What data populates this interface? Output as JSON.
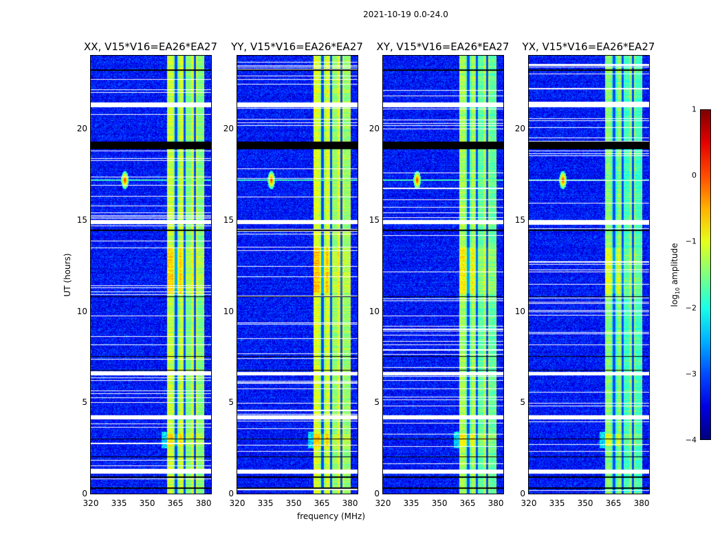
{
  "chart_data": {
    "type": "heatmap",
    "suptitle": "2021-10-19 0.0-24.0",
    "xlabel": "frequency (MHz)",
    "ylabel": "UT (hours)",
    "xlim": [
      320,
      384
    ],
    "ylim": [
      0,
      24
    ],
    "xticks": [
      "320",
      "335",
      "350",
      "365",
      "380"
    ],
    "xtick_values": [
      320,
      335,
      350,
      365,
      380
    ],
    "yticks": [
      "0",
      "5",
      "10",
      "15",
      "20"
    ],
    "ytick_values": [
      0,
      5,
      10,
      15,
      20
    ],
    "panels": [
      {
        "title": "XX, V15*V16=EA26*EA27",
        "band_level": -1.15,
        "background_level": -3.3
      },
      {
        "title": "YY, V15*V16=EA26*EA27",
        "band_level": -1.05,
        "background_level": -3.3
      },
      {
        "title": "XY, V15*V16=EA26*EA27",
        "band_level": -1.3,
        "background_level": -3.3
      },
      {
        "title": "YX, V15*V16=EA26*EA27",
        "band_level": -1.45,
        "background_level": -3.3
      }
    ],
    "band_mhz": [
      360.5,
      380
    ],
    "rfi": {
      "freq_mhz": 338,
      "hour": 17.2
    },
    "flagged_white_hours": [
      [
        1.1,
        1.35
      ],
      [
        4.1,
        4.3
      ],
      [
        6.5,
        6.7
      ],
      [
        14.8,
        15.0
      ],
      [
        21.2,
        21.45
      ]
    ],
    "flagged_black_hours": [
      [
        0.3,
        0.35
      ],
      [
        0.9,
        0.95
      ],
      [
        2.0,
        2.05
      ],
      [
        3.0,
        3.05
      ],
      [
        6.75,
        6.8
      ],
      [
        7.5,
        7.55
      ],
      [
        10.8,
        10.85
      ],
      [
        14.4,
        14.5
      ],
      [
        18.9,
        19.3
      ],
      [
        23.2,
        23.25
      ]
    ],
    "colorbar": {
      "label": "log10 amplitude",
      "label_main": "log",
      "label_sub": "10",
      "label_rest": " amplitude",
      "range": [
        -4,
        1
      ],
      "ticks": [
        "1",
        "0",
        "−1",
        "−2",
        "−3",
        "−4"
      ],
      "tick_values": [
        1,
        0,
        -1,
        -2,
        -3,
        -4
      ],
      "colormap": "jet"
    }
  }
}
